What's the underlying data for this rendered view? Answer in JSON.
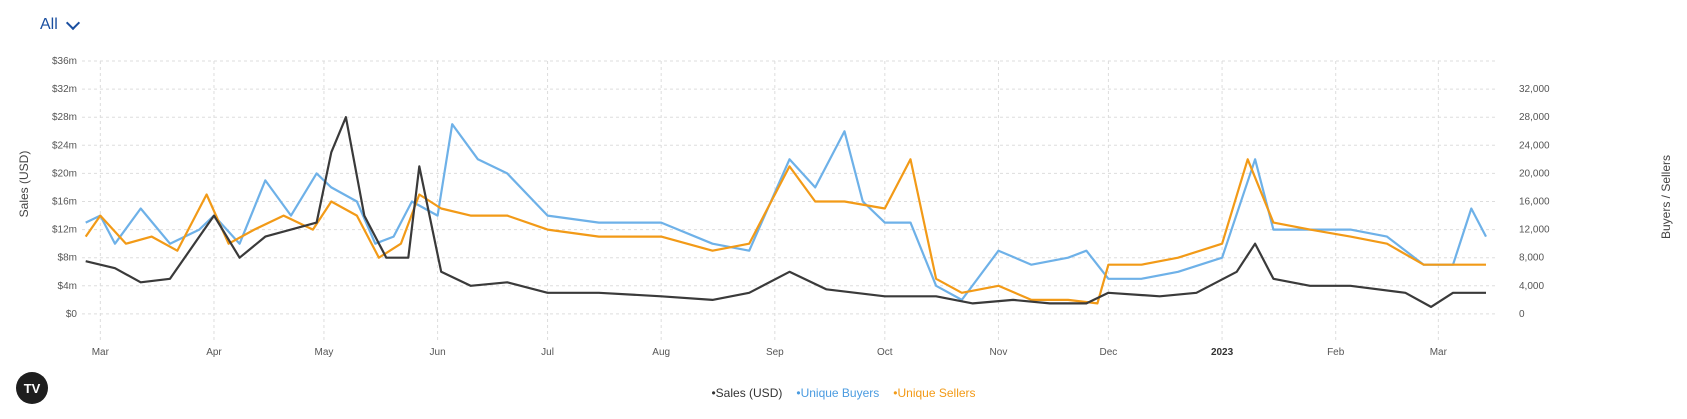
{
  "filter": {
    "label": "All",
    "icon": "chevron-down-icon"
  },
  "logo": {
    "text": "TV",
    "icon": "tradingview-logo-icon"
  },
  "chart_data": {
    "type": "line",
    "title": "",
    "xlabel": "",
    "ylabel": "Sales (USD)",
    "y2label": "Buyers / Sellers",
    "ylim": [
      -4,
      36
    ],
    "y2lim": [
      -4000,
      36000
    ],
    "y_ticks": [
      "$0",
      "$4m",
      "$8m",
      "$12m",
      "$16m",
      "$20m",
      "$24m",
      "$28m",
      "$32m",
      "$36m"
    ],
    "y2_ticks": [
      "0",
      "4,000",
      "8,000",
      "12,000",
      "16,000",
      "20,000",
      "24,000",
      "28,000",
      "32,000"
    ],
    "x_range": [
      "2022-02-24",
      "2023-03-17"
    ],
    "x_ticks": [
      {
        "label": "Mar",
        "date": "2022-03-01"
      },
      {
        "label": "Apr",
        "date": "2022-04-01"
      },
      {
        "label": "May",
        "date": "2022-05-01"
      },
      {
        "label": "Jun",
        "date": "2022-06-01"
      },
      {
        "label": "Jul",
        "date": "2022-07-01"
      },
      {
        "label": "Aug",
        "date": "2022-08-01"
      },
      {
        "label": "Sep",
        "date": "2022-09-01"
      },
      {
        "label": "Oct",
        "date": "2022-10-01"
      },
      {
        "label": "Nov",
        "date": "2022-11-01"
      },
      {
        "label": "Dec",
        "date": "2022-12-01"
      },
      {
        "label": "2023",
        "date": "2023-01-01",
        "bold": true
      },
      {
        "label": "Feb",
        "date": "2023-02-01"
      },
      {
        "label": "Mar",
        "date": "2023-03-01"
      }
    ],
    "grid": true,
    "legend_position": "bottom-center",
    "series": [
      {
        "name": "Sales (USD)",
        "axis": "left",
        "color": "#3a3a3a",
        "points": [
          [
            "2022-02-25",
            7.5
          ],
          [
            "2022-03-05",
            6.5
          ],
          [
            "2022-03-12",
            4.5
          ],
          [
            "2022-03-20",
            5
          ],
          [
            "2022-03-28",
            11
          ],
          [
            "2022-04-01",
            14
          ],
          [
            "2022-04-08",
            8
          ],
          [
            "2022-04-15",
            11
          ],
          [
            "2022-04-22",
            12
          ],
          [
            "2022-04-29",
            13
          ],
          [
            "2022-05-03",
            23
          ],
          [
            "2022-05-07",
            28
          ],
          [
            "2022-05-12",
            14
          ],
          [
            "2022-05-18",
            8
          ],
          [
            "2022-05-24",
            8
          ],
          [
            "2022-05-27",
            21
          ],
          [
            "2022-06-02",
            6
          ],
          [
            "2022-06-10",
            4
          ],
          [
            "2022-06-20",
            4.5
          ],
          [
            "2022-07-01",
            3
          ],
          [
            "2022-07-15",
            3
          ],
          [
            "2022-08-01",
            2.5
          ],
          [
            "2022-08-15",
            2
          ],
          [
            "2022-08-25",
            3
          ],
          [
            "2022-09-05",
            6
          ],
          [
            "2022-09-15",
            3.5
          ],
          [
            "2022-10-01",
            2.5
          ],
          [
            "2022-10-15",
            2.5
          ],
          [
            "2022-10-25",
            1.5
          ],
          [
            "2022-11-05",
            2
          ],
          [
            "2022-11-15",
            1.5
          ],
          [
            "2022-11-25",
            1.5
          ],
          [
            "2022-12-01",
            3
          ],
          [
            "2022-12-15",
            2.5
          ],
          [
            "2022-12-25",
            3
          ],
          [
            "2023-01-05",
            6
          ],
          [
            "2023-01-10",
            10
          ],
          [
            "2023-01-15",
            5
          ],
          [
            "2023-01-25",
            4
          ],
          [
            "2023-02-05",
            4
          ],
          [
            "2023-02-20",
            3
          ],
          [
            "2023-02-27",
            1
          ],
          [
            "2023-03-05",
            3
          ],
          [
            "2023-03-14",
            3
          ]
        ]
      },
      {
        "name": "Unique Buyers",
        "axis": "right",
        "color": "#6eb1e8",
        "points": [
          [
            "2022-02-25",
            13000
          ],
          [
            "2022-03-01",
            14000
          ],
          [
            "2022-03-05",
            10000
          ],
          [
            "2022-03-12",
            15000
          ],
          [
            "2022-03-20",
            10000
          ],
          [
            "2022-03-28",
            12000
          ],
          [
            "2022-04-01",
            14000
          ],
          [
            "2022-04-08",
            10000
          ],
          [
            "2022-04-15",
            19000
          ],
          [
            "2022-04-22",
            14000
          ],
          [
            "2022-04-29",
            20000
          ],
          [
            "2022-05-03",
            18000
          ],
          [
            "2022-05-10",
            16000
          ],
          [
            "2022-05-15",
            10000
          ],
          [
            "2022-05-20",
            11000
          ],
          [
            "2022-05-25",
            16000
          ],
          [
            "2022-06-01",
            14000
          ],
          [
            "2022-06-05",
            27000
          ],
          [
            "2022-06-12",
            22000
          ],
          [
            "2022-06-20",
            20000
          ],
          [
            "2022-07-01",
            14000
          ],
          [
            "2022-07-15",
            13000
          ],
          [
            "2022-08-01",
            13000
          ],
          [
            "2022-08-15",
            10000
          ],
          [
            "2022-08-25",
            9000
          ],
          [
            "2022-09-05",
            22000
          ],
          [
            "2022-09-12",
            18000
          ],
          [
            "2022-09-20",
            26000
          ],
          [
            "2022-09-25",
            16000
          ],
          [
            "2022-10-01",
            13000
          ],
          [
            "2022-10-08",
            13000
          ],
          [
            "2022-10-15",
            4000
          ],
          [
            "2022-10-22",
            2000
          ],
          [
            "2022-11-01",
            9000
          ],
          [
            "2022-11-10",
            7000
          ],
          [
            "2022-11-20",
            8000
          ],
          [
            "2022-11-25",
            9000
          ],
          [
            "2022-12-01",
            5000
          ],
          [
            "2022-12-10",
            5000
          ],
          [
            "2022-12-20",
            6000
          ],
          [
            "2023-01-01",
            8000
          ],
          [
            "2023-01-10",
            22000
          ],
          [
            "2023-01-15",
            12000
          ],
          [
            "2023-01-25",
            12000
          ],
          [
            "2023-02-05",
            12000
          ],
          [
            "2023-02-15",
            11000
          ],
          [
            "2023-02-25",
            7000
          ],
          [
            "2023-03-05",
            7000
          ],
          [
            "2023-03-10",
            15000
          ],
          [
            "2023-03-14",
            11000
          ]
        ]
      },
      {
        "name": "Unique Sellers",
        "axis": "right",
        "color": "#f29a17",
        "points": [
          [
            "2022-02-25",
            11000
          ],
          [
            "2022-03-01",
            14000
          ],
          [
            "2022-03-08",
            10000
          ],
          [
            "2022-03-15",
            11000
          ],
          [
            "2022-03-22",
            9000
          ],
          [
            "2022-03-30",
            17000
          ],
          [
            "2022-04-05",
            10000
          ],
          [
            "2022-04-12",
            12000
          ],
          [
            "2022-04-20",
            14000
          ],
          [
            "2022-04-28",
            12000
          ],
          [
            "2022-05-03",
            16000
          ],
          [
            "2022-05-10",
            14000
          ],
          [
            "2022-05-16",
            8000
          ],
          [
            "2022-05-22",
            10000
          ],
          [
            "2022-05-27",
            17000
          ],
          [
            "2022-06-02",
            15000
          ],
          [
            "2022-06-10",
            14000
          ],
          [
            "2022-06-20",
            14000
          ],
          [
            "2022-07-01",
            12000
          ],
          [
            "2022-07-15",
            11000
          ],
          [
            "2022-08-01",
            11000
          ],
          [
            "2022-08-15",
            9000
          ],
          [
            "2022-08-25",
            10000
          ],
          [
            "2022-09-05",
            21000
          ],
          [
            "2022-09-12",
            16000
          ],
          [
            "2022-09-20",
            16000
          ],
          [
            "2022-10-01",
            15000
          ],
          [
            "2022-10-08",
            22000
          ],
          [
            "2022-10-15",
            5000
          ],
          [
            "2022-10-22",
            3000
          ],
          [
            "2022-11-01",
            4000
          ],
          [
            "2022-11-10",
            2000
          ],
          [
            "2022-11-20",
            2000
          ],
          [
            "2022-11-28",
            1500
          ],
          [
            "2022-12-01",
            7000
          ],
          [
            "2022-12-10",
            7000
          ],
          [
            "2022-12-20",
            8000
          ],
          [
            "2023-01-01",
            10000
          ],
          [
            "2023-01-08",
            22000
          ],
          [
            "2023-01-15",
            13000
          ],
          [
            "2023-01-25",
            12000
          ],
          [
            "2023-02-05",
            11000
          ],
          [
            "2023-02-15",
            10000
          ],
          [
            "2023-02-25",
            7000
          ],
          [
            "2023-03-05",
            7000
          ],
          [
            "2023-03-14",
            7000
          ]
        ]
      }
    ]
  }
}
